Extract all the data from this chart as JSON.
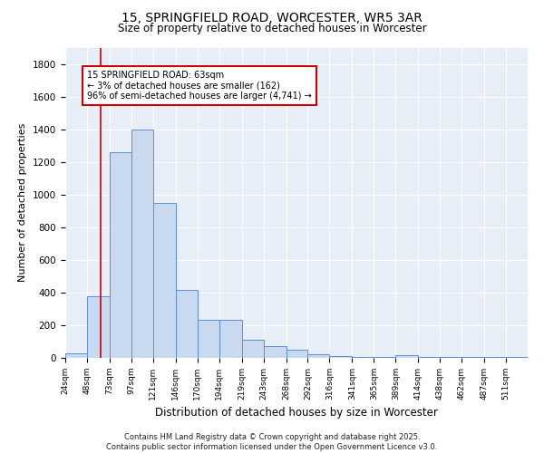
{
  "title": "15, SPRINGFIELD ROAD, WORCESTER, WR5 3AR",
  "subtitle": "Size of property relative to detached houses in Worcester",
  "xlabel": "Distribution of detached houses by size in Worcester",
  "ylabel": "Number of detached properties",
  "bin_edges": [
    24,
    48,
    73,
    97,
    121,
    146,
    170,
    194,
    219,
    243,
    268,
    292,
    316,
    341,
    365,
    389,
    414,
    438,
    462,
    487,
    511,
    535
  ],
  "bar_labels": [
    "24sqm",
    "48sqm",
    "73sqm",
    "97sqm",
    "121sqm",
    "146sqm",
    "170sqm",
    "194sqm",
    "219sqm",
    "243sqm",
    "268sqm",
    "292sqm",
    "316sqm",
    "341sqm",
    "365sqm",
    "389sqm",
    "414sqm",
    "438sqm",
    "462sqm",
    "487sqm",
    "511sqm"
  ],
  "values": [
    25,
    380,
    1260,
    1400,
    950,
    415,
    235,
    235,
    110,
    70,
    50,
    20,
    10,
    5,
    5,
    15,
    5,
    5,
    5,
    5,
    5
  ],
  "bar_color": "#c9d9f0",
  "bar_edge_color": "#5a8fd4",
  "red_line_x": 63,
  "red_line_color": "#cc0000",
  "annotation_text": "15 SPRINGFIELD ROAD: 63sqm\n← 3% of detached houses are smaller (162)\n96% of semi-detached houses are larger (4,741) →",
  "annotation_box_color": "#ffffff",
  "annotation_box_edge": "#cc0000",
  "ylim": [
    0,
    1900
  ],
  "yticks": [
    0,
    200,
    400,
    600,
    800,
    1000,
    1200,
    1400,
    1600,
    1800
  ],
  "background_color": "#e8eef8",
  "footer_line1": "Contains HM Land Registry data © Crown copyright and database right 2025.",
  "footer_line2": "Contains public sector information licensed under the Open Government Licence v3.0."
}
